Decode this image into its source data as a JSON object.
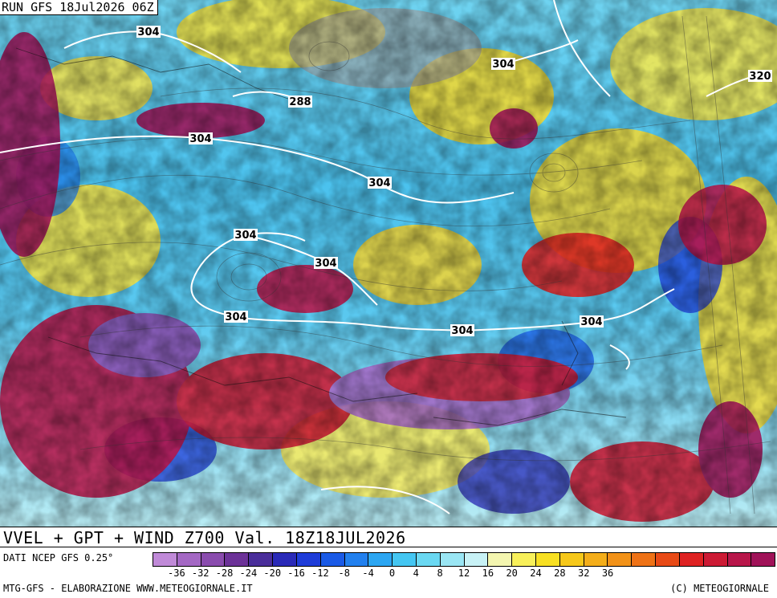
{
  "header": {
    "run_label": "RUN GFS 18Jul2026 06Z"
  },
  "title": "VVEL + GPT + WIND Z700 Val. 18Z18JUL2026",
  "source": "DATI NCEP GFS 0.25°",
  "footer": {
    "left": "MTG-GFS - ELABORAZIONE WWW.METEOGIORNALE.IT",
    "right": "(C) METEOGIORNALE"
  },
  "scale": {
    "colors": [
      "#c08ad8",
      "#a468c4",
      "#8a4cae",
      "#6c3298",
      "#4a2e9a",
      "#2a2ab8",
      "#1e3cd8",
      "#1a5ae6",
      "#2280ee",
      "#2ca6f2",
      "#44c6f2",
      "#6ad8f2",
      "#9ae6f4",
      "#c8f2f6",
      "#f4f6b0",
      "#f8f05a",
      "#f8e022",
      "#f6c81a",
      "#f4ae1a",
      "#f29218",
      "#ee7216",
      "#e84a16",
      "#de2222",
      "#cc1a34",
      "#b8164a",
      "#a01258"
    ],
    "ticks": [
      "-36",
      "-32",
      "-28",
      "-24",
      "-20",
      "-16",
      "-12",
      "-8",
      "-4",
      "0",
      "4",
      "8",
      "12",
      "16",
      "20",
      "24",
      "28",
      "32",
      "36"
    ]
  },
  "isolines": [
    {
      "label": "304"
    },
    {
      "label": "288"
    },
    {
      "label": "304"
    },
    {
      "label": "304"
    },
    {
      "label": "304"
    },
    {
      "label": "304"
    },
    {
      "label": "304"
    },
    {
      "label": "304"
    },
    {
      "label": "304"
    },
    {
      "label": "320"
    },
    {
      "label": "304"
    }
  ]
}
